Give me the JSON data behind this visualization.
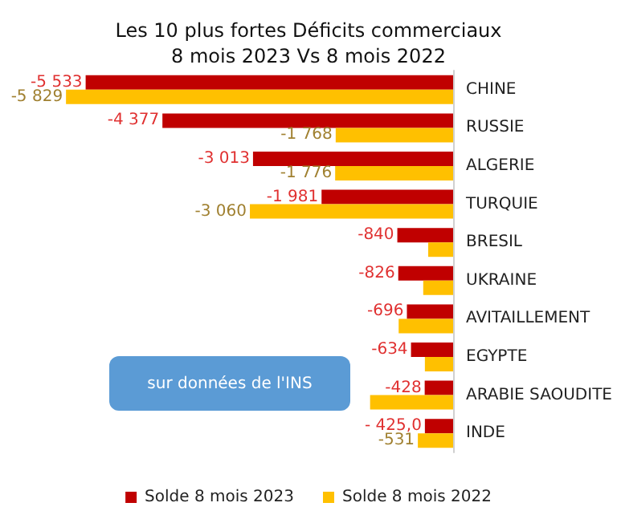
{
  "chart_data": {
    "type": "bar",
    "orientation": "horizontal",
    "title": "Les 10 plus fortes Déficits commerciaux\n8 mois 2023 Vs 8 mois 2022",
    "categories": [
      "CHINE",
      "RUSSIE",
      "ALGERIE",
      "TURQUIE",
      "BRESIL",
      "UKRAINE",
      "AVITAILLEMENT",
      "EGYPTE",
      "ARABIE SAOUDITE",
      "INDE"
    ],
    "series": [
      {
        "name": "Solde 8 mois 2023",
        "color": "#c00000",
        "values": [
          -5533,
          -4377,
          -3013,
          -1981,
          -840,
          -826,
          -696,
          -634,
          -428,
          -425
        ],
        "value_labels": [
          "-5 533",
          "-4 377",
          "-3 013",
          "-1 981",
          "-840",
          "-826",
          "-696",
          "-634",
          "-428",
          "- 425,0"
        ]
      },
      {
        "name": "Solde 8 mois 2022",
        "color": "#ffc000",
        "values": [
          -5829,
          -1768,
          -1776,
          -3060,
          -375,
          -450,
          -820,
          -425,
          -1250,
          -531
        ],
        "value_labels": [
          "-5 829",
          "-1 768",
          "-1 776",
          "-3 060",
          null,
          null,
          null,
          null,
          null,
          "-531"
        ]
      }
    ],
    "tick_labels": "y",
    "legend": "bottom",
    "annotations": [
      "sur données de l'INS"
    ]
  }
}
